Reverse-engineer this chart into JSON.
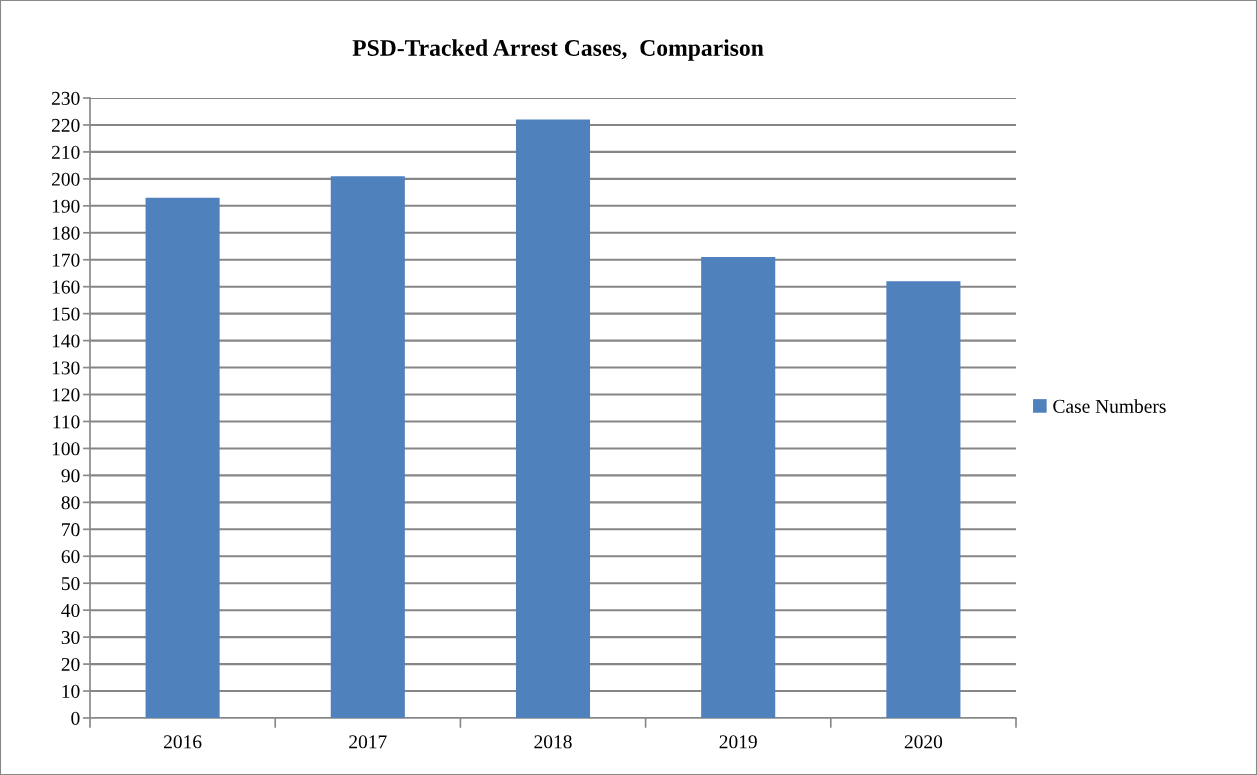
{
  "chart_data": {
    "type": "bar",
    "title": "PSD-Tracked Arrest Cases,  Comparison",
    "categories": [
      "2016",
      "2017",
      "2018",
      "2019",
      "2020"
    ],
    "series": [
      {
        "name": "Case Numbers",
        "color": "#4f81bd",
        "values": [
          193,
          201,
          222,
          171,
          162
        ]
      }
    ],
    "ylim": [
      0,
      230
    ],
    "yticks": [
      0,
      10,
      20,
      30,
      40,
      50,
      60,
      70,
      80,
      90,
      100,
      110,
      120,
      130,
      140,
      150,
      160,
      170,
      180,
      190,
      200,
      210,
      220,
      230
    ],
    "grid": "y",
    "legend": "right"
  }
}
